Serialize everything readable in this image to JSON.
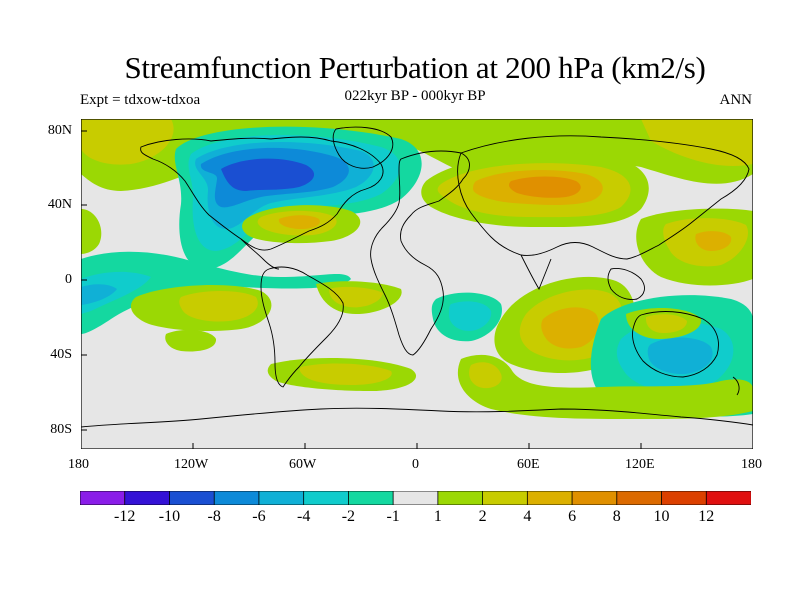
{
  "title": "Streamfunction Perturbation at 200 hPa (km2/s)",
  "subtitle": "022kyr BP - 000kyr BP",
  "left_label": "Expt = tdxow-tdxoa",
  "right_label": "ANN",
  "x_ticks": [
    "180",
    "120W",
    "60W",
    "0",
    "60E",
    "120E",
    "180"
  ],
  "y_ticks": [
    "80N",
    "40N",
    "0",
    "40S",
    "80S"
  ],
  "colorbar": {
    "colors": [
      "#8a1de8",
      "#3412d6",
      "#1a4fd2",
      "#0d8ad8",
      "#10b0d6",
      "#10cccc",
      "#14d8a0",
      "#e6e6e6",
      "#9bd804",
      "#c8cc00",
      "#dcb000",
      "#e09000",
      "#dc6a00",
      "#dc4000",
      "#e01010"
    ],
    "labels": [
      "-12",
      "-10",
      "-8",
      "-6",
      "-4",
      "-2",
      "-1",
      "1",
      "2",
      "4",
      "6",
      "8",
      "10",
      "12"
    ]
  }
}
